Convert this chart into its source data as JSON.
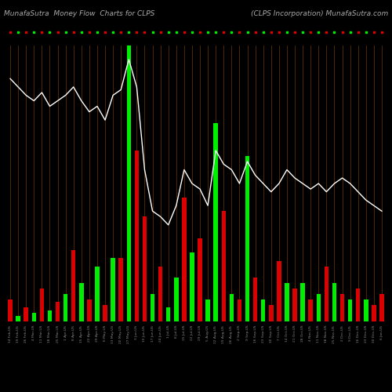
{
  "title_left": "MunafaSutra  Money Flow  Charts for CLPS",
  "title_right": "(CLPS Incorporation) MunafaSutra.com",
  "bg_color": "#000000",
  "bar_color_pos": "#00ee00",
  "bar_color_neg": "#dd0000",
  "line_color": "#ffffff",
  "vline_color": "#7a3a00",
  "categories": [
    "14 Feb,US",
    "19 Feb,US",
    "26 Feb,US",
    "4 Mar,US",
    "11 Mar,US",
    "18 Mar,US",
    "25 Mar,US",
    "1 Apr,US",
    "8 Apr,US",
    "15 Apr,US",
    "22 Apr,US",
    "29 Apr,US",
    "6 May,US",
    "13 May,US",
    "20 May,US",
    "27 May,US",
    "3 Jun,US",
    "10 Jun,US",
    "17 Jun,US",
    "24 Jun,US",
    "1 Jul,US",
    "8 Jul,US",
    "15 Jul,US",
    "22 Jul,US",
    "29 Jul,US",
    "5 Aug,US",
    "12 Aug,US",
    "19 Aug,US",
    "26 Aug,US",
    "2 Sep,US",
    "9 Sep,US",
    "16 Sep,US",
    "23 Sep,US",
    "30 Sep,US",
    "7 Oct,US",
    "14 Oct,US",
    "21 Oct,US",
    "28 Oct,US",
    "4 Nov,US",
    "11 Nov,US",
    "18 Nov,US",
    "25 Nov,US",
    "2 Dec,US",
    "9 Dec,US",
    "16 Dec,US",
    "23 Dec,US",
    "30 Dec,US",
    "6 Jan,US"
  ],
  "bar_heights": [
    8,
    2,
    5,
    3,
    12,
    4,
    7,
    10,
    26,
    14,
    8,
    20,
    6,
    23,
    23,
    100,
    62,
    38,
    10,
    20,
    5,
    16,
    45,
    25,
    30,
    8,
    72,
    40,
    10,
    8,
    60,
    16,
    8,
    6,
    22,
    14,
    12,
    14,
    8,
    10,
    20,
    14,
    10,
    8,
    12,
    8,
    6,
    10
  ],
  "bar_colors": [
    "neg",
    "pos",
    "neg",
    "pos",
    "neg",
    "pos",
    "neg",
    "pos",
    "neg",
    "pos",
    "neg",
    "pos",
    "neg",
    "pos",
    "neg",
    "pos",
    "neg",
    "neg",
    "pos",
    "neg",
    "pos",
    "pos",
    "neg",
    "pos",
    "neg",
    "pos",
    "pos",
    "neg",
    "pos",
    "neg",
    "pos",
    "neg",
    "pos",
    "neg",
    "neg",
    "pos",
    "neg",
    "pos",
    "neg",
    "pos",
    "neg",
    "pos",
    "neg",
    "pos",
    "neg",
    "pos",
    "neg",
    "neg"
  ],
  "line_values": [
    88,
    85,
    82,
    80,
    83,
    78,
    80,
    82,
    85,
    80,
    76,
    78,
    73,
    82,
    84,
    95,
    85,
    55,
    40,
    38,
    35,
    42,
    55,
    50,
    48,
    42,
    62,
    57,
    55,
    50,
    58,
    53,
    50,
    47,
    50,
    55,
    52,
    50,
    48,
    50,
    47,
    50,
    52,
    50,
    47,
    44,
    42,
    40
  ],
  "title_fontsize": 6.5,
  "tick_fontsize": 3.2,
  "figsize": [
    5.0,
    5.0
  ],
  "dpi": 100
}
